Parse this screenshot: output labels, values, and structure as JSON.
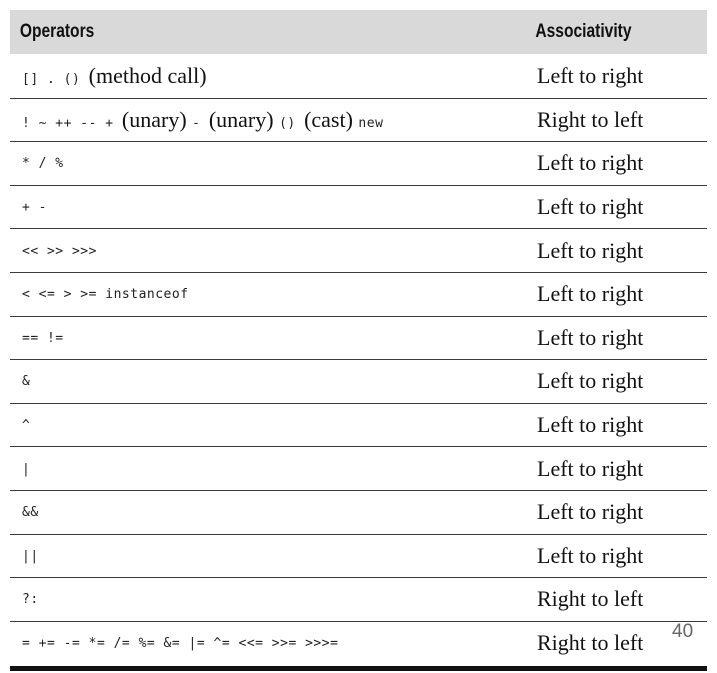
{
  "header": {
    "operators_label": "Operators",
    "associativity_label": "Associativity"
  },
  "rows": [
    {
      "parts": [
        {
          "t": "[] . ",
          "s": "mono"
        },
        {
          "t": "() ",
          "s": "mono"
        },
        {
          "t": "(method call)",
          "s": "serif"
        }
      ],
      "assoc": "Left to right"
    },
    {
      "parts": [
        {
          "t": "! ~ ++ -- + ",
          "s": "mono"
        },
        {
          "t": "(unary) ",
          "s": "serif"
        },
        {
          "t": "- ",
          "s": "mono"
        },
        {
          "t": "(unary) ",
          "s": "serif"
        },
        {
          "t": "() ",
          "s": "mono"
        },
        {
          "t": "(cast) ",
          "s": "serif"
        },
        {
          "t": "new",
          "s": "mono"
        }
      ],
      "assoc": "Right to left"
    },
    {
      "parts": [
        {
          "t": "* / %",
          "s": "mono"
        }
      ],
      "assoc": "Left to right"
    },
    {
      "parts": [
        {
          "t": "+ -",
          "s": "mono"
        }
      ],
      "assoc": "Left to right"
    },
    {
      "parts": [
        {
          "t": "<< >> >>>",
          "s": "mono"
        }
      ],
      "assoc": "Left to right"
    },
    {
      "parts": [
        {
          "t": "< <= > >= instanceof",
          "s": "mono"
        }
      ],
      "assoc": "Left to right"
    },
    {
      "parts": [
        {
          "t": "== !=",
          "s": "mono"
        }
      ],
      "assoc": "Left to right"
    },
    {
      "parts": [
        {
          "t": "&",
          "s": "mono"
        }
      ],
      "assoc": "Left to right"
    },
    {
      "parts": [
        {
          "t": "^",
          "s": "mono"
        }
      ],
      "assoc": "Left to right"
    },
    {
      "parts": [
        {
          "t": "|",
          "s": "mono"
        }
      ],
      "assoc": "Left to right"
    },
    {
      "parts": [
        {
          "t": "&&",
          "s": "mono"
        }
      ],
      "assoc": "Left to right"
    },
    {
      "parts": [
        {
          "t": "||",
          "s": "mono"
        }
      ],
      "assoc": "Left to right"
    },
    {
      "parts": [
        {
          "t": "?:",
          "s": "mono"
        }
      ],
      "assoc": "Right to left"
    },
    {
      "parts": [
        {
          "t": "= += -= *= /= %= &= |= ^= <<= >>= >>>=",
          "s": "mono"
        }
      ],
      "assoc": "Right to left"
    }
  ],
  "page_number": "40"
}
